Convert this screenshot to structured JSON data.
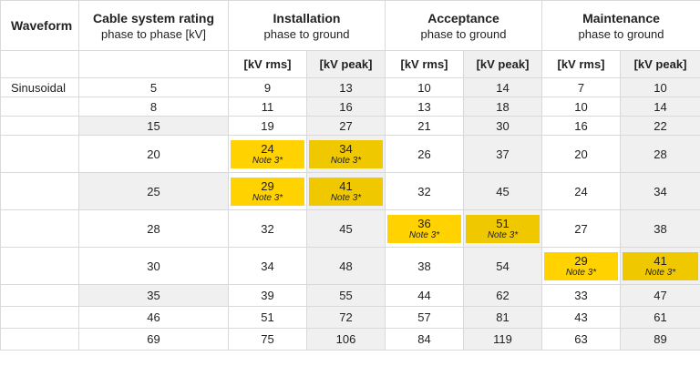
{
  "header": {
    "waveform": "Waveform",
    "rating_title": "Cable system rating",
    "rating_sub": "phase to phase [kV]",
    "installation_title": "Installation",
    "installation_sub": "phase to ground",
    "acceptance_title": "Acceptance",
    "acceptance_sub": "phase to ground",
    "maintenance_title": "Maintenance",
    "maintenance_sub": "phase to ground"
  },
  "units": [
    "[kV rms]",
    "[kV peak]",
    "[kV rms]",
    "[kV peak]",
    "[kV rms]",
    "[kV peak]"
  ],
  "note": "Note 3*",
  "waveform_label": "Sinusoidal",
  "rows": [
    {
      "rating": "5",
      "vals": [
        "9",
        "13",
        "10",
        "14",
        "7",
        "10"
      ]
    },
    {
      "rating": "8",
      "vals": [
        "11",
        "16",
        "13",
        "18",
        "10",
        "14"
      ]
    },
    {
      "rating": "15",
      "vals": [
        "19",
        "27",
        "21",
        "30",
        "16",
        "22"
      ]
    },
    {
      "rating": "20",
      "vals": [
        "24",
        "34",
        "26",
        "37",
        "20",
        "28"
      ]
    },
    {
      "rating": "25",
      "vals": [
        "29",
        "41",
        "32",
        "45",
        "24",
        "34"
      ]
    },
    {
      "rating": "28",
      "vals": [
        "32",
        "45",
        "36",
        "51",
        "27",
        "38"
      ]
    },
    {
      "rating": "30",
      "vals": [
        "34",
        "48",
        "38",
        "54",
        "29",
        "41"
      ]
    },
    {
      "rating": "35",
      "vals": [
        "39",
        "55",
        "44",
        "62",
        "33",
        "47"
      ]
    },
    {
      "rating": "46",
      "vals": [
        "51",
        "72",
        "57",
        "81",
        "43",
        "61"
      ]
    },
    {
      "rating": "69",
      "vals": [
        "75",
        "106",
        "84",
        "119",
        "63",
        "89"
      ]
    }
  ]
}
